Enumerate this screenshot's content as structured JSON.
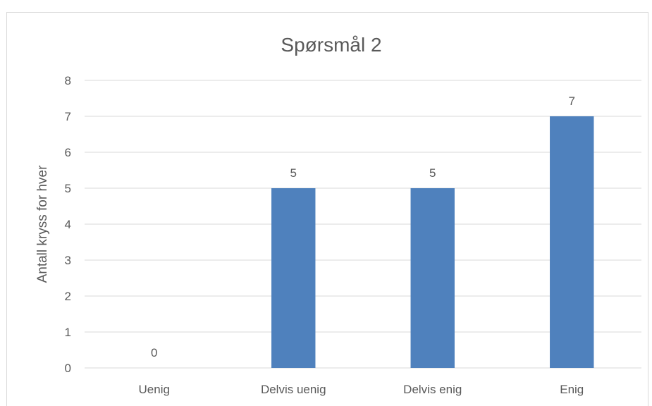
{
  "chart_data": {
    "type": "bar",
    "title": "Spørsmål 2",
    "xlabel": "",
    "ylabel": "Antall kryss for hver",
    "categories": [
      "Uenig",
      "Delvis uenig",
      "Delvis enig",
      "Enig"
    ],
    "values": [
      0,
      5,
      5,
      7
    ],
    "ylim": [
      0,
      8
    ],
    "yticks": [
      "0",
      "1",
      "2",
      "3",
      "4",
      "5",
      "6",
      "7",
      "8"
    ],
    "grid": true,
    "legend": "none",
    "bar_color": "#4f81bd"
  }
}
